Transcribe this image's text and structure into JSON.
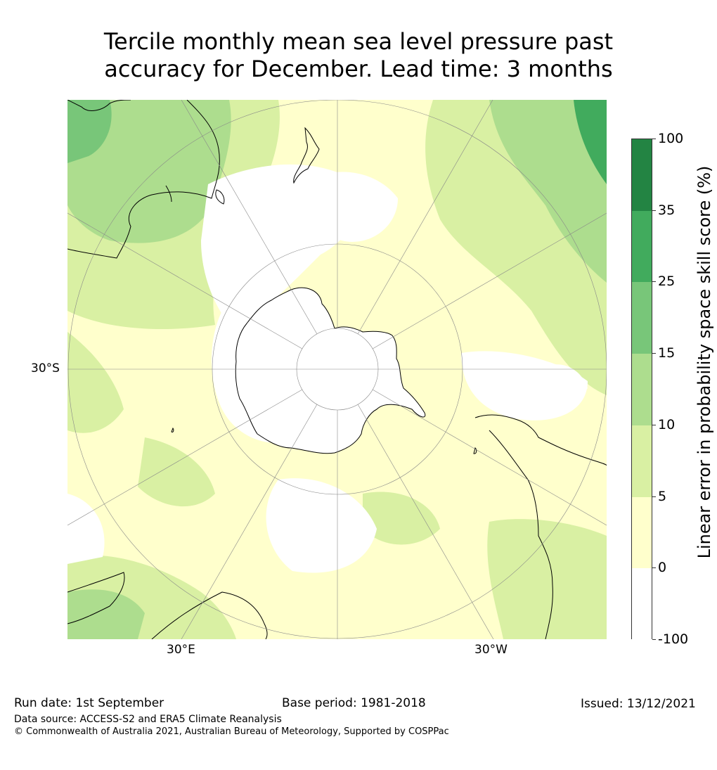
{
  "title": {
    "line1": "Tercile monthly mean sea level pressure past",
    "line2": "accuracy for December. Lead time: 3 months"
  },
  "map": {
    "projection": "south-polar-stereographic",
    "labels": {
      "lat_30s": "30°S",
      "lon_30e": "30°E",
      "lon_30w": "30°W"
    },
    "colors": {
      "land_outline": "#000000",
      "graticule": "#888888"
    }
  },
  "colorbar": {
    "title": "Linear error in probability space skill score (%)",
    "ticks": [
      "-100",
      "0",
      "5",
      "10",
      "15",
      "25",
      "35",
      "100"
    ],
    "bins": [
      {
        "from": "-100",
        "to": "0",
        "color": "#ffffff"
      },
      {
        "from": "0",
        "to": "5",
        "color": "#ffffcc"
      },
      {
        "from": "5",
        "to": "10",
        "color": "#d9f0a3"
      },
      {
        "from": "10",
        "to": "15",
        "color": "#addd8e"
      },
      {
        "from": "15",
        "to": "25",
        "color": "#78c679"
      },
      {
        "from": "25",
        "to": "35",
        "color": "#41ab5d"
      },
      {
        "from": "35",
        "to": "100",
        "color": "#238443"
      }
    ]
  },
  "footer": {
    "run_date": "Run date: 1st September",
    "base_period": "Base period: 1981-2018",
    "issued": "Issued: 13/12/2021",
    "data_source": "Data source: ACCESS-S2 and ERA5 Climate Reanalysis",
    "copyright": "© Commonwealth of Australia 2021, Australian Bureau of Meteorology, Supported by COSPPac"
  }
}
